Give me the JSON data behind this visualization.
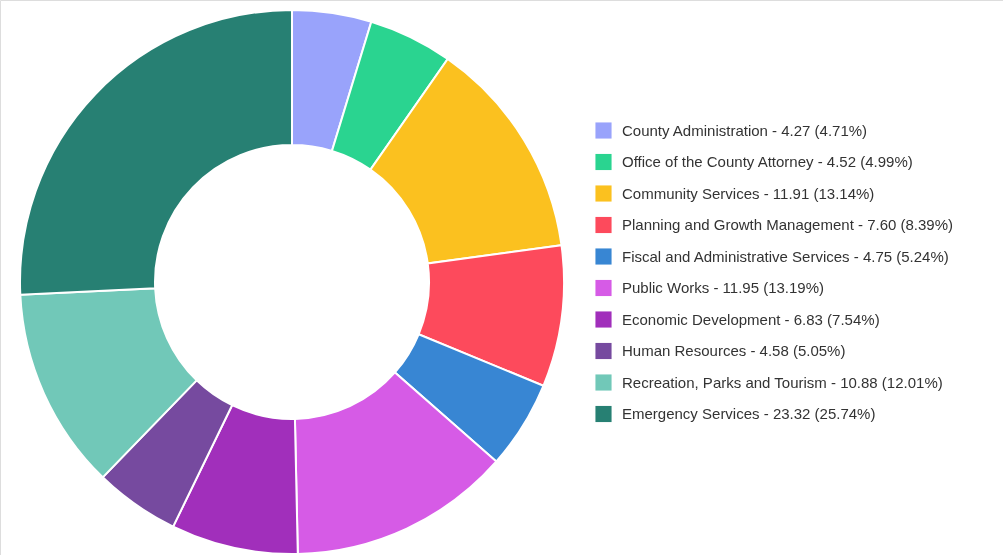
{
  "chart_data": {
    "type": "donut",
    "categories": [
      "County Administration - 4.27 (4.71%)",
      "Office of the County Attorney  - 4.52 (4.99%)",
      "Community Services - 11.91 (13.14%)",
      "Planning and Growth Management - 7.60 (8.39%)",
      "Fiscal and Administrative Services - 4.75 (5.24%)",
      "Public Works - 11.95 (13.19%)",
      "Economic Development - 6.83 (7.54%)",
      "Human Resources - 4.58 (5.05%)",
      "Recreation, Parks and Tourism - 10.88 (12.01%)",
      "Emergency Services - 23.32 (25.74%)"
    ],
    "values": [
      4.71,
      4.99,
      13.14,
      8.39,
      5.24,
      13.19,
      7.54,
      5.05,
      12.01,
      25.74
    ],
    "colors": [
      "#99a3fb",
      "#2ad490",
      "#fbc11f",
      "#fd4a5c",
      "#3886d3",
      "#d65be6",
      "#a12fbb",
      "#764a9f",
      "#71c8b8",
      "#278073"
    ],
    "legend": "right"
  }
}
